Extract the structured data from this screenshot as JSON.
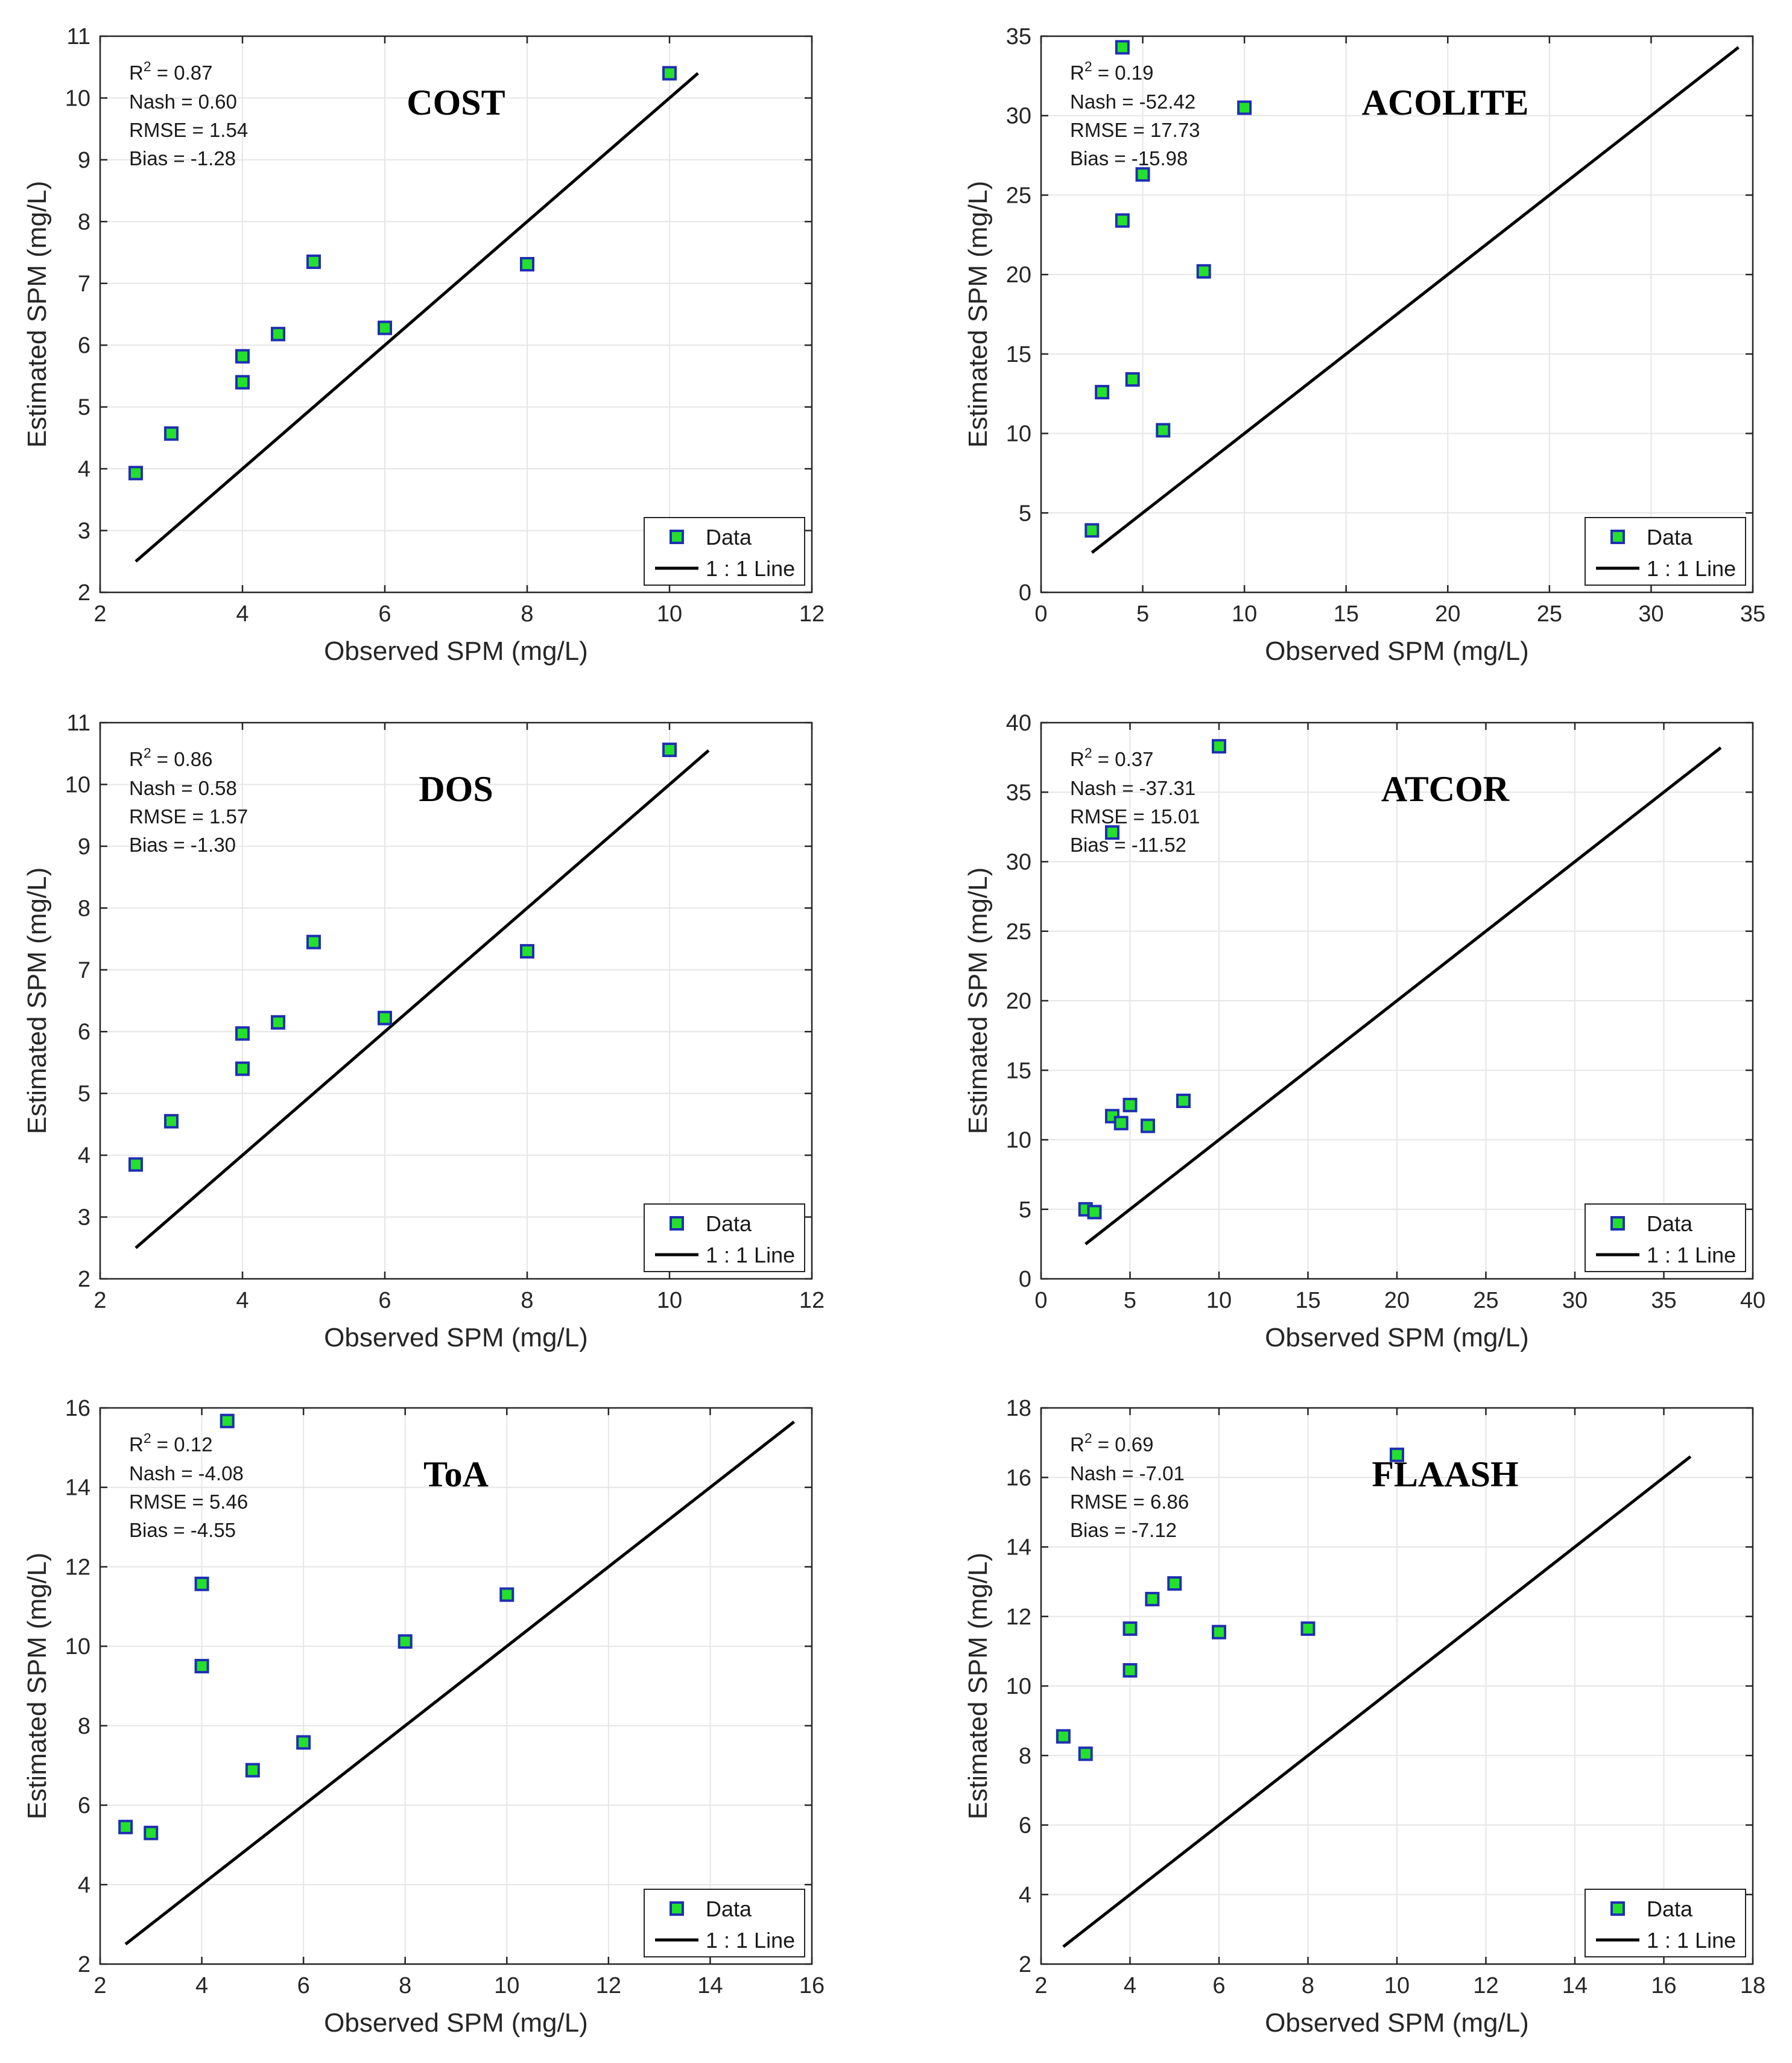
{
  "chart_data": [
    {
      "type": "scatter",
      "title": "COST",
      "xlabel": "Observed SPM (mg/L)",
      "ylabel": "Estimated SPM (mg/L)",
      "xlim": [
        2,
        12
      ],
      "ylim": [
        2,
        11
      ],
      "xticks": [
        2,
        4,
        6,
        8,
        10,
        12
      ],
      "yticks": [
        2,
        3,
        4,
        5,
        6,
        7,
        8,
        9,
        10,
        11
      ],
      "stats": {
        "r2": "0.87",
        "nash": "Nash = 0.60",
        "rmse": "RMSE = 1.54",
        "bias": "Bias = -1.28"
      },
      "points": [
        [
          2.5,
          3.93
        ],
        [
          3,
          4.57
        ],
        [
          4,
          5.82
        ],
        [
          4,
          5.4
        ],
        [
          4.5,
          6.18
        ],
        [
          5,
          7.35
        ],
        [
          6,
          6.28
        ],
        [
          8,
          7.31
        ],
        [
          10,
          10.4
        ]
      ],
      "line": [
        [
          2.5,
          2.5
        ],
        [
          10.4,
          10.4
        ]
      ],
      "legend": {
        "data": "Data",
        "line": "1 : 1 Line"
      },
      "legend_position": "bottom-right",
      "grid": true
    },
    {
      "type": "scatter",
      "title": "ACOLITE",
      "xlabel": "Observed SPM (mg/L)",
      "ylabel": "Estimated SPM (mg/L)",
      "xlim": [
        0,
        35
      ],
      "ylim": [
        0,
        35
      ],
      "xticks": [
        0,
        5,
        10,
        15,
        20,
        25,
        30,
        35
      ],
      "yticks": [
        0,
        5,
        10,
        15,
        20,
        25,
        30,
        35
      ],
      "stats": {
        "r2": "0.19",
        "nash": "Nash = -52.42",
        "rmse": "RMSE = 17.73",
        "bias": "Bias = -15.98"
      },
      "points": [
        [
          2.5,
          3.9
        ],
        [
          3,
          12.6
        ],
        [
          4,
          34.3
        ],
        [
          4,
          23.4
        ],
        [
          4.5,
          13.4
        ],
        [
          5,
          26.3
        ],
        [
          6,
          10.2
        ],
        [
          8,
          20.2
        ],
        [
          10,
          30.5
        ]
      ],
      "line": [
        [
          2.5,
          2.5
        ],
        [
          34.3,
          34.3
        ]
      ],
      "legend": {
        "data": "Data",
        "line": "1 : 1 Line"
      },
      "legend_position": "bottom-right",
      "grid": true
    },
    {
      "type": "scatter",
      "title": "DOS",
      "xlabel": "Observed SPM (mg/L)",
      "ylabel": "Estimated SPM (mg/L)",
      "xlim": [
        2,
        12
      ],
      "ylim": [
        2,
        11
      ],
      "xticks": [
        2,
        4,
        6,
        8,
        10,
        12
      ],
      "yticks": [
        2,
        3,
        4,
        5,
        6,
        7,
        8,
        9,
        10,
        11
      ],
      "stats": {
        "r2": "0.86",
        "nash": "Nash = 0.58",
        "rmse": "RMSE = 1.57",
        "bias": "Bias = -1.30"
      },
      "points": [
        [
          2.5,
          3.85
        ],
        [
          3,
          4.55
        ],
        [
          4,
          5.97
        ],
        [
          4,
          5.4
        ],
        [
          4.5,
          6.15
        ],
        [
          5,
          7.45
        ],
        [
          6,
          6.22
        ],
        [
          8,
          7.3
        ],
        [
          10,
          10.56
        ]
      ],
      "line": [
        [
          2.5,
          2.5
        ],
        [
          10.55,
          10.55
        ]
      ],
      "legend": {
        "data": "Data",
        "line": "1 : 1 Line"
      },
      "legend_position": "bottom-right",
      "grid": true
    },
    {
      "type": "scatter",
      "title": "ATCOR",
      "xlabel": "Observed SPM (mg/L)",
      "ylabel": "Estimated SPM (mg/L)",
      "xlim": [
        0,
        40
      ],
      "ylim": [
        0,
        40
      ],
      "xticks": [
        0,
        5,
        10,
        15,
        20,
        25,
        30,
        35,
        40
      ],
      "yticks": [
        0,
        5,
        10,
        15,
        20,
        25,
        30,
        35,
        40
      ],
      "stats": {
        "r2": "0.37",
        "nash": "Nash = -37.31",
        "rmse": "RMSE = 15.01",
        "bias": "Bias = -11.52"
      },
      "points": [
        [
          2.5,
          5
        ],
        [
          3,
          4.8
        ],
        [
          4,
          32.1
        ],
        [
          4,
          11.7
        ],
        [
          4.5,
          11.2
        ],
        [
          5,
          12.5
        ],
        [
          6,
          11
        ],
        [
          8,
          12.8
        ],
        [
          10,
          38.3
        ]
      ],
      "line": [
        [
          2.5,
          2.5
        ],
        [
          38.2,
          38.2
        ]
      ],
      "legend": {
        "data": "Data",
        "line": "1 : 1 Line"
      },
      "legend_position": "bottom-right",
      "grid": true
    },
    {
      "type": "scatter",
      "title": "ToA",
      "xlabel": "Observed SPM (mg/L)",
      "ylabel": "Estimated SPM (mg/L)",
      "xlim": [
        2,
        16
      ],
      "ylim": [
        2,
        16
      ],
      "xticks": [
        2,
        4,
        6,
        8,
        10,
        12,
        14,
        16
      ],
      "yticks": [
        2,
        4,
        6,
        8,
        10,
        12,
        14,
        16
      ],
      "stats": {
        "r2": "0.12",
        "nash": "Nash = -4.08",
        "rmse": "RMSE = 5.46",
        "bias": "Bias = -4.55"
      },
      "points": [
        [
          2.5,
          5.45
        ],
        [
          3,
          5.3
        ],
        [
          4,
          11.57
        ],
        [
          4,
          9.5
        ],
        [
          4.5,
          15.67
        ],
        [
          5,
          6.88
        ],
        [
          6,
          7.58
        ],
        [
          8,
          10.12
        ],
        [
          10,
          11.3
        ]
      ],
      "line": [
        [
          2.5,
          2.5
        ],
        [
          15.65,
          15.65
        ]
      ],
      "legend": {
        "data": "Data",
        "line": "1 : 1 Line"
      },
      "legend_position": "bottom-right",
      "grid": true
    },
    {
      "type": "scatter",
      "title": "FLAASH",
      "xlabel": "Observed SPM (mg/L)",
      "ylabel": "Estimated SPM (mg/L)",
      "xlim": [
        2,
        18
      ],
      "ylim": [
        2,
        18
      ],
      "xticks": [
        2,
        4,
        6,
        8,
        10,
        12,
        14,
        16,
        18
      ],
      "yticks": [
        2,
        4,
        6,
        8,
        10,
        12,
        14,
        16,
        18
      ],
      "stats": {
        "r2": "0.69",
        "nash": "Nash = -7.01",
        "rmse": "RMSE = 6.86",
        "bias": "Bias = -7.12"
      },
      "points": [
        [
          2.5,
          8.55
        ],
        [
          3,
          8.05
        ],
        [
          4,
          11.65
        ],
        [
          4,
          10.45
        ],
        [
          4.5,
          12.5
        ],
        [
          5,
          12.95
        ],
        [
          6,
          11.55
        ],
        [
          8,
          11.65
        ],
        [
          10,
          16.65
        ]
      ],
      "line": [
        [
          2.5,
          2.5
        ],
        [
          16.6,
          16.6
        ]
      ],
      "legend": {
        "data": "Data",
        "line": "1 : 1 Line"
      },
      "legend_position": "bottom-right",
      "grid": true
    }
  ]
}
